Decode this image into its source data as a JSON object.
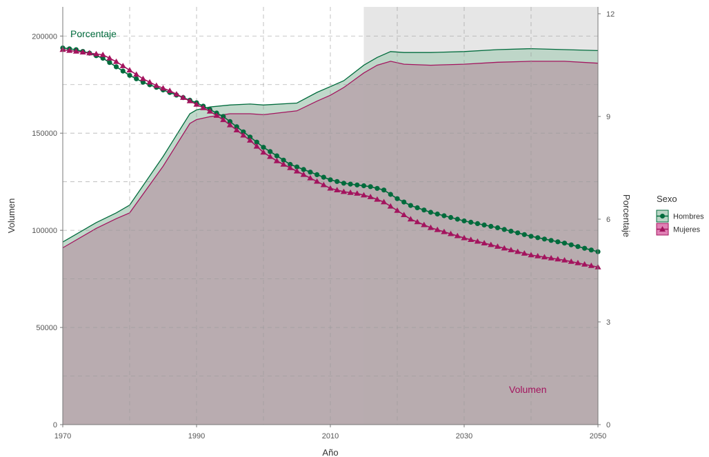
{
  "chart_data": {
    "type": "area",
    "xlabel": "Año",
    "ylabel_left": "Volumen",
    "ylabel_right": "Porcentaje",
    "xlim": [
      1970,
      2050
    ],
    "ylim_left": [
      0,
      215000
    ],
    "ylim_right": [
      0,
      12.2
    ],
    "x_ticks": [
      "1970",
      "1990",
      "2010",
      "2030",
      "2050"
    ],
    "y_ticks_left": [
      "0",
      "50000",
      "100000",
      "150000",
      "200000"
    ],
    "y_ticks_right": [
      "0",
      "3",
      "6",
      "9",
      "12"
    ],
    "projection_shade": {
      "from": 2015,
      "to": 2050
    },
    "grid": true,
    "annotations": {
      "percent_label": "Porcentaje",
      "volume_label": "Volumen"
    },
    "legend": {
      "title": "Sexo",
      "position": "right",
      "items": [
        "Hombres",
        "Mujeres"
      ]
    },
    "colors": {
      "hombres": "#006B3C",
      "hombres_fill": "#b9d4c4",
      "mujeres": "#A3145E",
      "mujeres_fill": "#b7a2aa",
      "projection": "#e6e6e6"
    },
    "volume_series": [
      {
        "name": "Hombres",
        "x": [
          1970,
          1975,
          1978,
          1980,
          1985,
          1989,
          1990,
          1992,
          1995,
          1998,
          2000,
          2005,
          2008,
          2010,
          2012,
          2015,
          2017,
          2019,
          2021,
          2025,
          2030,
          2035,
          2040,
          2045,
          2050
        ],
        "values": [
          94000,
          104000,
          109000,
          113000,
          138000,
          160000,
          162000,
          163500,
          164500,
          165000,
          164500,
          165500,
          171000,
          174000,
          177000,
          185000,
          189000,
          192000,
          191500,
          191500,
          192000,
          193000,
          193500,
          193000,
          192500
        ]
      },
      {
        "name": "Mujeres",
        "x": [
          1970,
          1975,
          1978,
          1980,
          1985,
          1989,
          1990,
          1992,
          1995,
          1998,
          2000,
          2005,
          2008,
          2010,
          2012,
          2015,
          2017,
          2019,
          2021,
          2025,
          2030,
          2035,
          2040,
          2045,
          2050
        ],
        "values": [
          91000,
          101000,
          106000,
          109000,
          133000,
          155000,
          157000,
          158500,
          160000,
          160000,
          159500,
          161500,
          166500,
          169500,
          173500,
          181000,
          185000,
          187000,
          185500,
          185000,
          185500,
          186500,
          187000,
          187000,
          186000
        ]
      }
    ],
    "percent_series": [
      {
        "name": "Hombres",
        "marker": "circle",
        "x": [
          1970,
          1972,
          1974,
          1976,
          1978,
          1980,
          1982,
          1984,
          1986,
          1988,
          1990,
          1992,
          1994,
          1996,
          1998,
          2000,
          2002,
          2004,
          2006,
          2008,
          2010,
          2012,
          2014,
          2016,
          2018,
          2020,
          2022,
          2025,
          2030,
          2035,
          2040,
          2045,
          2050
        ],
        "values": [
          11.0,
          10.95,
          10.85,
          10.7,
          10.45,
          10.2,
          10.0,
          9.85,
          9.7,
          9.55,
          9.4,
          9.2,
          9.0,
          8.7,
          8.4,
          8.1,
          7.85,
          7.6,
          7.45,
          7.3,
          7.15,
          7.05,
          7.0,
          6.95,
          6.85,
          6.6,
          6.4,
          6.2,
          5.95,
          5.75,
          5.5,
          5.3,
          5.05
        ]
      },
      {
        "name": "Mujeres",
        "marker": "triangle",
        "x": [
          1970,
          1972,
          1974,
          1976,
          1978,
          1980,
          1982,
          1984,
          1986,
          1988,
          1990,
          1992,
          1994,
          1996,
          1998,
          2000,
          2002,
          2004,
          2006,
          2008,
          2010,
          2012,
          2014,
          2016,
          2018,
          2020,
          2022,
          2025,
          2030,
          2035,
          2040,
          2045,
          2050
        ],
        "values": [
          10.95,
          10.9,
          10.85,
          10.8,
          10.6,
          10.35,
          10.1,
          9.9,
          9.75,
          9.55,
          9.35,
          9.15,
          8.9,
          8.6,
          8.3,
          7.95,
          7.7,
          7.5,
          7.3,
          7.1,
          6.9,
          6.8,
          6.75,
          6.65,
          6.5,
          6.25,
          6.0,
          5.75,
          5.45,
          5.2,
          4.95,
          4.8,
          4.6
        ]
      }
    ]
  }
}
